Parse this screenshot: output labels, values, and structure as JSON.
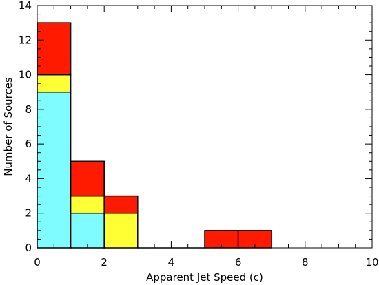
{
  "chart_data": {
    "type": "bar",
    "stacked": true,
    "xlabel": "Apparent Jet Speed (c)",
    "ylabel": "Number of Sources",
    "xlim": [
      0,
      10
    ],
    "ylim": [
      0,
      14
    ],
    "xticks": [
      0,
      2,
      4,
      6,
      8,
      10
    ],
    "yticks": [
      0,
      2,
      4,
      6,
      8,
      10,
      12,
      14
    ],
    "grid": false,
    "bins": [
      {
        "x0": 0,
        "x1": 1
      },
      {
        "x0": 1,
        "x1": 2
      },
      {
        "x0": 2,
        "x1": 3
      },
      {
        "x0": 3,
        "x1": 4
      },
      {
        "x0": 4,
        "x1": 5
      },
      {
        "x0": 5,
        "x1": 6
      },
      {
        "x0": 6,
        "x1": 7
      }
    ],
    "series": [
      {
        "color": "#7ffcff",
        "values": [
          9,
          2,
          0,
          0,
          0,
          0,
          0
        ]
      },
      {
        "color": "#ffff33",
        "values": [
          1,
          1,
          2,
          0,
          0,
          0,
          0
        ]
      },
      {
        "color": "#ff1a00",
        "values": [
          3,
          2,
          1,
          0,
          0,
          1,
          1
        ]
      }
    ]
  }
}
